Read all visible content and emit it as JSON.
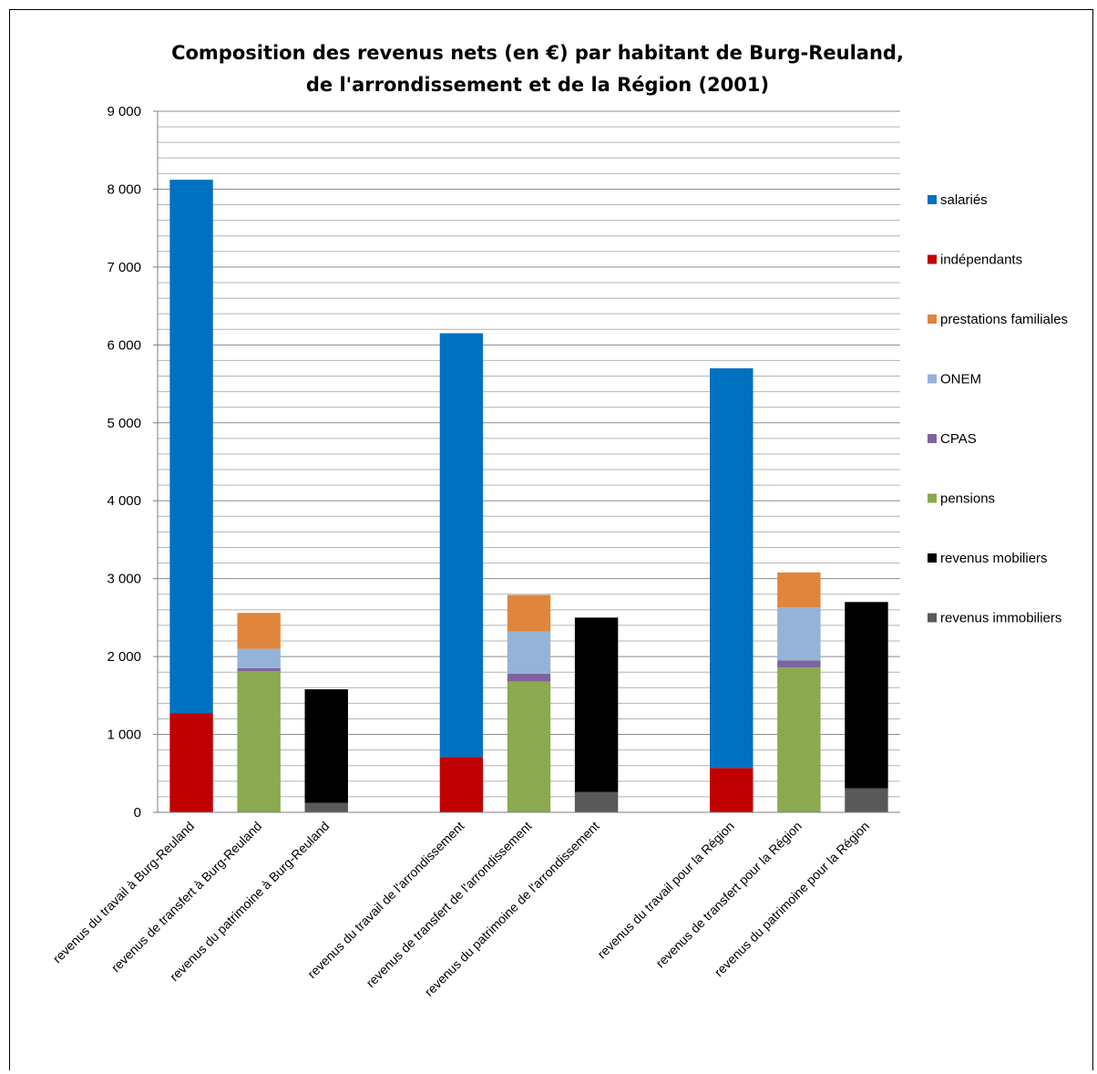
{
  "chart_data": {
    "type": "bar",
    "stacked": true,
    "title": [
      "Composition  des revenus nets (en €) par habitant de Burg-Reuland,",
      "de l'arrondissement  et de la Région (2001)"
    ],
    "xlabel": "",
    "ylabel": "",
    "ylim": [
      0,
      9000
    ],
    "major_ticks": [
      0,
      1000,
      2000,
      3000,
      4000,
      5000,
      6000,
      7000,
      8000,
      9000
    ],
    "tick_labels": [
      "0",
      "1 000",
      "2 000",
      "3 000",
      "4 000",
      "5 000",
      "6 000",
      "7 000",
      "8 000",
      "9 000"
    ],
    "minor_step": 200,
    "grid": true,
    "legend_position": "right",
    "categories": [
      "revenus du travail à Burg-Reuland",
      "revenus de transfert à Burg-Reuland",
      "revenus du patrimoine à Burg-Reuland",
      "",
      "revenus du travail de l'arrondissement",
      "revenus de transfert de l'arrondissement",
      "revenus du patrimoine de l'arrondissement",
      "",
      "revenus du travail pour la Région",
      "revenus de transfert pour la Région",
      "revenus du patrimoine pour la Région"
    ],
    "series": [
      {
        "name": "revenus immobiliers",
        "color": "#595959",
        "values": [
          0,
          0,
          120,
          0,
          0,
          0,
          260,
          0,
          0,
          0,
          310
        ]
      },
      {
        "name": "revenus mobiliers",
        "color": "#000000",
        "values": [
          0,
          0,
          1460,
          0,
          0,
          0,
          2240,
          0,
          0,
          0,
          2390
        ]
      },
      {
        "name": "pensions",
        "color": "#8BA94F",
        "values": [
          0,
          1810,
          0,
          0,
          0,
          1680,
          0,
          0,
          0,
          1860,
          0
        ]
      },
      {
        "name": "CPAS",
        "color": "#7E649E",
        "values": [
          0,
          40,
          0,
          0,
          0,
          100,
          0,
          0,
          0,
          90,
          0
        ]
      },
      {
        "name": "ONEM",
        "color": "#95B3D7",
        "values": [
          0,
          250,
          0,
          0,
          0,
          540,
          0,
          0,
          0,
          680,
          0
        ]
      },
      {
        "name": "prestations familiales",
        "color": "#E0853D",
        "values": [
          0,
          460,
          0,
          0,
          0,
          470,
          0,
          0,
          0,
          450,
          0
        ]
      },
      {
        "name": "indépendants",
        "color": "#C00000",
        "values": [
          1270,
          0,
          0,
          0,
          710,
          0,
          0,
          0,
          570,
          0,
          0
        ]
      },
      {
        "name": "salariés",
        "color": "#0070C0",
        "values": [
          6850,
          0,
          0,
          0,
          5440,
          0,
          0,
          0,
          5130,
          0,
          0
        ]
      }
    ],
    "legend_order": [
      "salariés",
      "indépendants",
      "prestations familiales",
      "ONEM",
      "CPAS",
      "pensions",
      "revenus mobiliers",
      "revenus immobiliers"
    ]
  }
}
